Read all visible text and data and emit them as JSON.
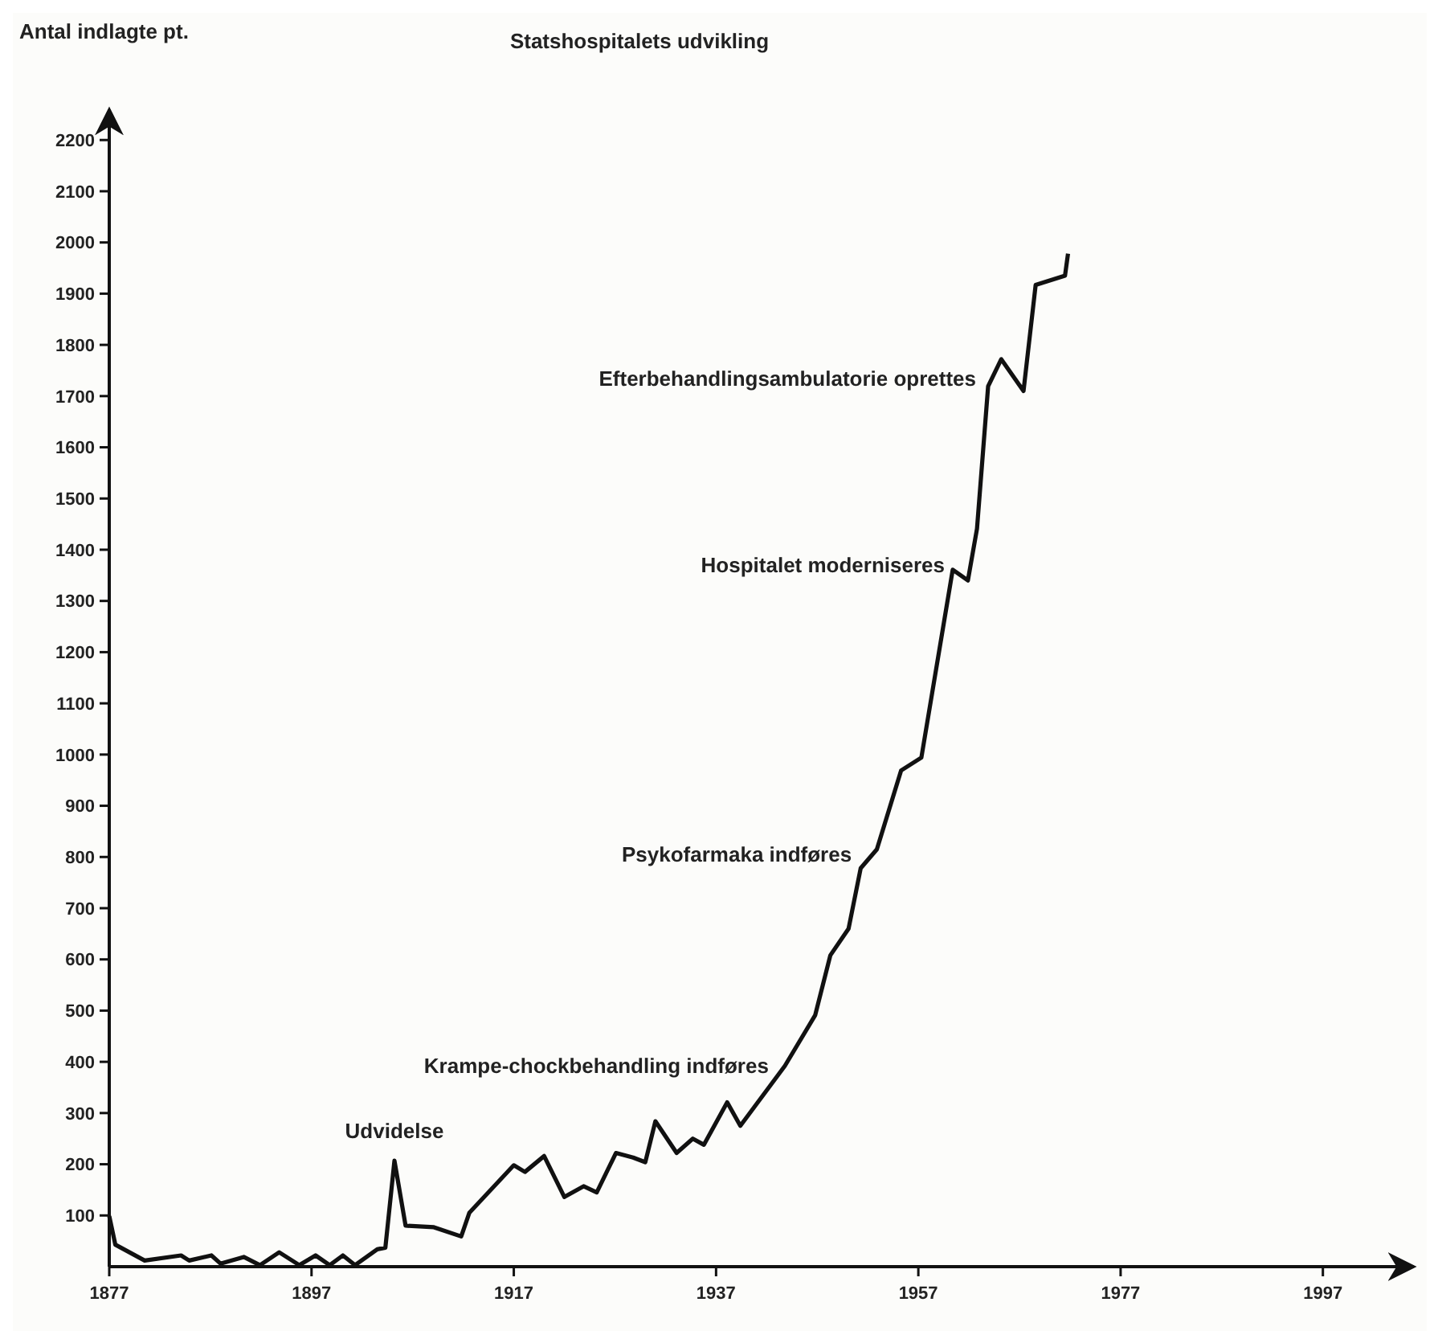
{
  "chart_data": {
    "type": "line",
    "title": "Statshospitalets udvikling",
    "ylabel": "Antal indlagte pt.",
    "x": [
      1877,
      1877.6,
      1880.5,
      1884.1,
      1884.9,
      1887.1,
      1888,
      1890.3,
      1891.9,
      1893.8,
      1895.8,
      1897.4,
      1898.8,
      1900.1,
      1901.3,
      1903.5,
      1904.3,
      1905.2,
      1906.3,
      1909.1,
      1911.8,
      1912.6,
      1917,
      1918.1,
      1920,
      1922,
      1923.9,
      1925.2,
      1927.1,
      1928.8,
      1930,
      1931,
      1933.1,
      1934.7,
      1935.8,
      1938.1,
      1939.4,
      1943.8,
      1946.8,
      1948.3,
      1950.1,
      1951.3,
      1952.9,
      1955.3,
      1957.3,
      1960.4,
      1961.9,
      1962.8,
      1963.9,
      1965.2,
      1967.4,
      1968.6,
      1971.5,
      1971.8
    ],
    "series": [
      {
        "color": "#111111",
        "values": [
          99,
          43,
          12,
          22,
          12,
          22,
          6,
          19,
          3,
          28,
          3,
          22,
          3,
          22,
          3,
          34,
          37,
          207,
          80,
          77,
          59,
          105,
          198,
          185,
          216,
          136,
          157,
          145,
          222,
          213,
          204,
          284,
          222,
          250,
          238,
          321,
          275,
          392,
          491,
          608,
          660,
          778,
          815,
          969,
          994,
          1361,
          1340,
          1441,
          1719,
          1772,
          1710,
          1917,
          1935,
          1978
        ]
      }
    ],
    "xlim": [
      1877,
      2006
    ],
    "xticks": [
      1877,
      1897,
      1917,
      1937,
      1957,
      1977,
      1997
    ],
    "ylim": [
      0,
      2260
    ],
    "yticks": [
      100,
      200,
      300,
      400,
      500,
      600,
      700,
      800,
      900,
      1000,
      1100,
      1200,
      1300,
      1400,
      1500,
      1600,
      1700,
      1800,
      1900,
      2000,
      2100,
      2200
    ],
    "grid": false,
    "marker": "none",
    "line_style": "solid",
    "annotations": [
      {
        "text": "Udvidelse",
        "x": 1905.2,
        "y": 207
      },
      {
        "text": "Krampe-chockbehandling indføres",
        "x": 1943.8,
        "y": 392
      },
      {
        "text": "Psykofarmaka indføres",
        "x": 1952,
        "y": 805
      },
      {
        "text": "Hospitalet moderniseres",
        "x": 1961.2,
        "y": 1370
      },
      {
        "text": "Efterbehandlingsambulatorie oprettes",
        "x": 1964.3,
        "y": 1735
      }
    ]
  }
}
